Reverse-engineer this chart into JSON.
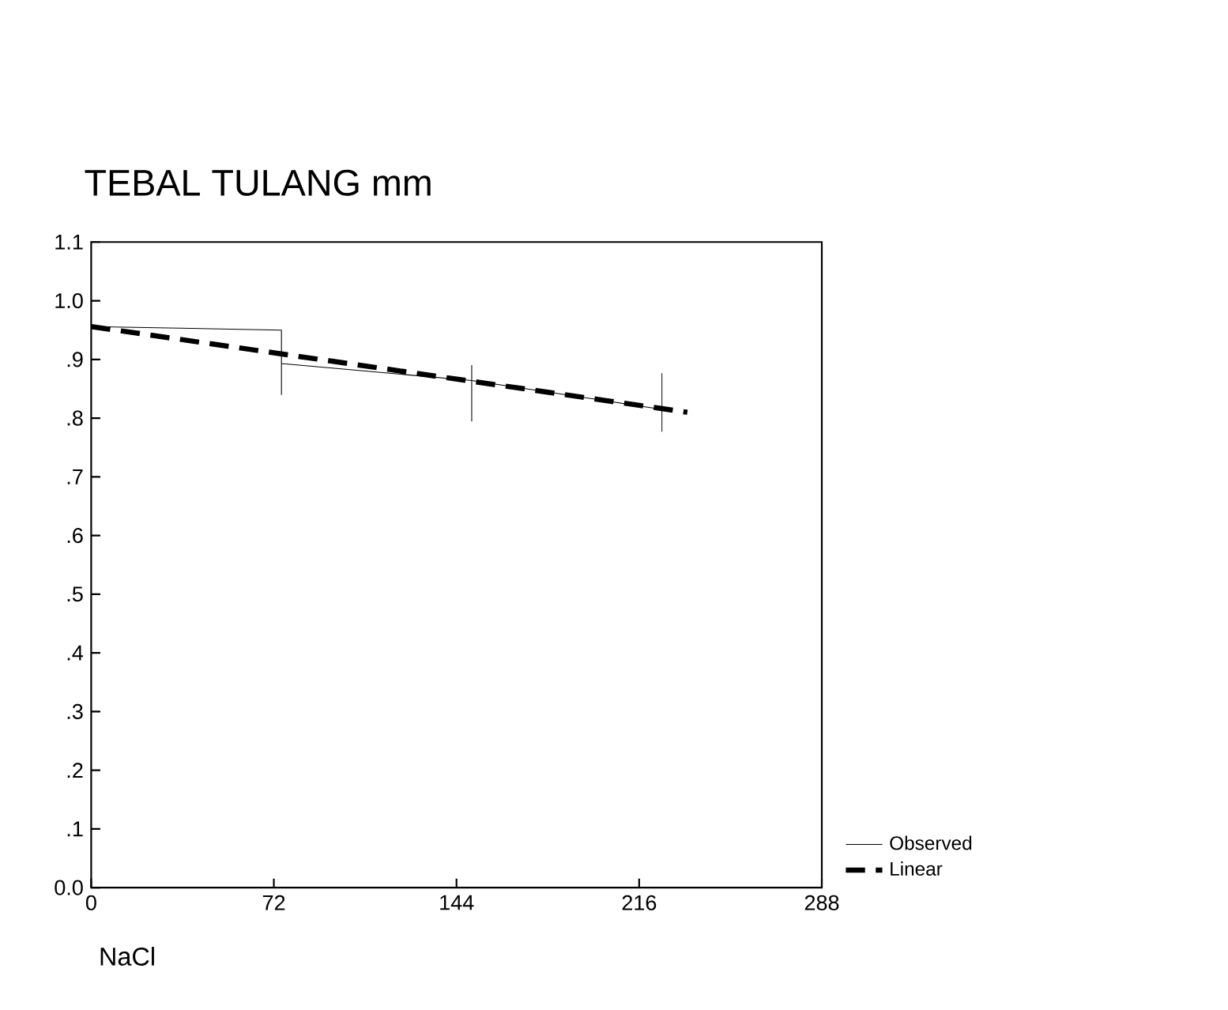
{
  "chart_data": {
    "type": "line",
    "title": "TEBAL TULANG mm",
    "xlabel": "NaCl",
    "xlim": [
      0,
      288
    ],
    "xticks": [
      0,
      72,
      144,
      216,
      288
    ],
    "ylim": [
      0,
      1.1
    ],
    "yticks": [
      {
        "value": 0,
        "label": "0.0"
      },
      {
        "value": 0.1,
        "label": ".1"
      },
      {
        "value": 0.2,
        "label": ".2"
      },
      {
        "value": 0.3,
        "label": ".3"
      },
      {
        "value": 0.4,
        "label": ".4"
      },
      {
        "value": 0.5,
        "label": ".5"
      },
      {
        "value": 0.6,
        "label": ".6"
      },
      {
        "value": 0.7,
        "label": ".7"
      },
      {
        "value": 0.8,
        "label": ".8"
      },
      {
        "value": 0.9,
        "label": ".9"
      },
      {
        "value": 1.0,
        "label": "1.0"
      },
      {
        "value": 1.1,
        "label": "1.1"
      }
    ],
    "grid": false,
    "legend": "bottom right",
    "marker": "none",
    "series": [
      {
        "name": "Observed",
        "color": "#000000",
        "line_style": "solid",
        "x": [
          0,
          75,
          75,
          75,
          150,
          150,
          150,
          150,
          225,
          225,
          225
        ],
        "values": [
          0.956,
          0.95,
          0.84,
          0.893,
          0.864,
          0.89,
          0.795,
          0.864,
          0.815,
          0.876,
          0.777
        ]
      },
      {
        "name": "Linear",
        "color": "#000000",
        "line_style": "dashed",
        "x": [
          0,
          235
        ],
        "values": [
          0.956,
          0.81
        ]
      }
    ]
  }
}
